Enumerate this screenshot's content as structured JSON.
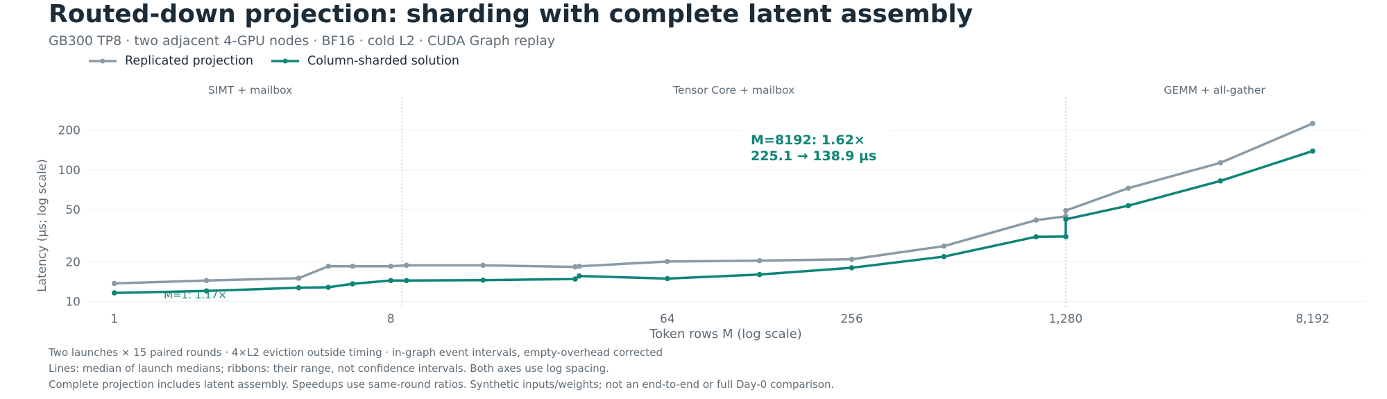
{
  "title": "Routed-down projection: sharding with complete latent assembly",
  "subtitle": "GB300 TP8 · two adjacent 4-GPU nodes · BF16 · cold L2 · CUDA Graph replay",
  "colors": {
    "replicated": "#8a9ba8",
    "sharded": "#0f8578",
    "text": "#1b2b38",
    "muted": "#5e6b76"
  },
  "regions": [
    "SIMT + mailbox",
    "Tensor Core + mailbox",
    "GEMM + all-gather"
  ],
  "notes": [
    "Two launches × 15 paired rounds · 4×L2 eviction outside timing · in-graph event intervals, empty-overhead corrected",
    "Lines: median of launch medians; ribbons: their range, not confidence intervals. Both axes use log spacing.",
    "Complete projection includes latent assembly. Speedups use same-round ratios. Synthetic inputs/weights; not an end-to-end or full Day-0 comparison."
  ],
  "chart_data": {
    "type": "line",
    "title": "Routed-down projection: sharding with complete latent assembly",
    "xlabel": "Token rows M (log scale)",
    "ylabel": "Latency (µs; log scale)",
    "x_scale": "log",
    "y_scale": "log",
    "xlim": [
      0.8,
      12000
    ],
    "ylim": [
      9,
      270
    ],
    "x_ticks": [
      1,
      8,
      64,
      256,
      1280,
      8192
    ],
    "x_tick_labels": [
      "1",
      "8",
      "64",
      "256",
      "1,280",
      "8,192"
    ],
    "y_ticks": [
      10,
      20,
      50,
      100,
      200
    ],
    "y_tick_labels": [
      "10",
      "20",
      "50",
      "100",
      "200"
    ],
    "region_boundaries": [
      8.7,
      1280
    ],
    "grid": "horizontal",
    "legend_position": "top-left",
    "series": [
      {
        "name": "Replicated projection",
        "points": [
          [
            1,
            13.7
          ],
          [
            2,
            14.4
          ],
          [
            4,
            15.0
          ],
          [
            5,
            18.5
          ],
          [
            6,
            18.5
          ],
          [
            8,
            18.5
          ],
          [
            9,
            18.8
          ],
          [
            16,
            18.8
          ],
          [
            32,
            18.3
          ],
          [
            33,
            18.5
          ],
          [
            64,
            20.1
          ],
          [
            128,
            20.4
          ],
          [
            256,
            20.9
          ],
          [
            512,
            26.3
          ],
          [
            1024,
            41.5
          ],
          [
            1280,
            44.3
          ],
          [
            1280,
            49.0
          ],
          [
            2048,
            72.5
          ],
          [
            4096,
            113.2
          ],
          [
            8192,
            225.1
          ]
        ]
      },
      {
        "name": "Column-sharded solution",
        "points": [
          [
            1,
            11.6
          ],
          [
            2,
            12.0
          ],
          [
            4,
            12.7
          ],
          [
            5,
            12.8
          ],
          [
            6,
            13.6
          ],
          [
            8,
            14.4
          ],
          [
            9,
            14.4
          ],
          [
            16,
            14.5
          ],
          [
            32,
            14.8
          ],
          [
            33,
            15.6
          ],
          [
            64,
            14.9
          ],
          [
            128,
            16.0
          ],
          [
            256,
            18.0
          ],
          [
            512,
            21.9
          ],
          [
            1024,
            31.0
          ],
          [
            1280,
            31.1
          ],
          [
            1280,
            42.1
          ],
          [
            2048,
            53.4
          ],
          [
            4096,
            82.4
          ],
          [
            8192,
            138.9
          ]
        ]
      }
    ],
    "annotations": [
      {
        "text": "M=1: 1.17×",
        "x": 1,
        "y": 11.6
      },
      {
        "text": "M=8192: 1.62×",
        "x": 8192,
        "y": 225.1
      },
      {
        "text": "225.1 → 138.9 µs",
        "x": 8192,
        "y": 138.9
      }
    ]
  }
}
